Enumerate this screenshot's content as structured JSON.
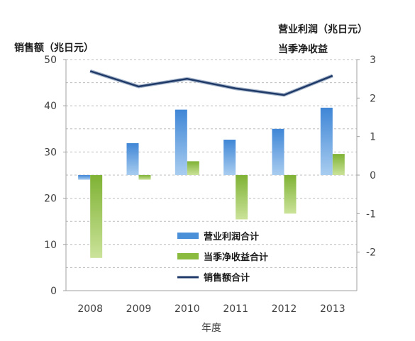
{
  "chart_data": {
    "type": "bar",
    "categories": [
      "2008",
      "2009",
      "2010",
      "2011",
      "2012",
      "2013"
    ],
    "xlabel": "年度",
    "left_axis": {
      "title": "销售额（兆日元）",
      "ylim": [
        0,
        50
      ],
      "ticks": [
        "0",
        "10",
        "20",
        "30",
        "40",
        "50"
      ]
    },
    "right_axis": {
      "title_line1": "营业利润（兆日元）",
      "title_line2": "当季净收益",
      "ylim": [
        -3,
        3
      ],
      "ticks": [
        "-2",
        "-1",
        "0",
        "1",
        "2",
        "3"
      ]
    },
    "series": [
      {
        "name": "营业利润合计",
        "type": "bar",
        "axis": "right",
        "color": "#4a90d9",
        "values": [
          -0.12,
          0.83,
          1.7,
          0.92,
          1.2,
          1.75
        ]
      },
      {
        "name": "当季净收益合计",
        "type": "bar",
        "axis": "right",
        "color": "#8bbb3e",
        "values": [
          -2.15,
          -0.12,
          0.36,
          -1.15,
          -1.0,
          0.55
        ]
      },
      {
        "name": "销售额合计",
        "type": "line",
        "axis": "right",
        "color": "#1f3a68",
        "values": [
          2.7,
          2.3,
          2.5,
          2.25,
          2.08,
          2.58
        ]
      }
    ],
    "grid": "dashed horizontal",
    "legend": "bottom-center"
  }
}
